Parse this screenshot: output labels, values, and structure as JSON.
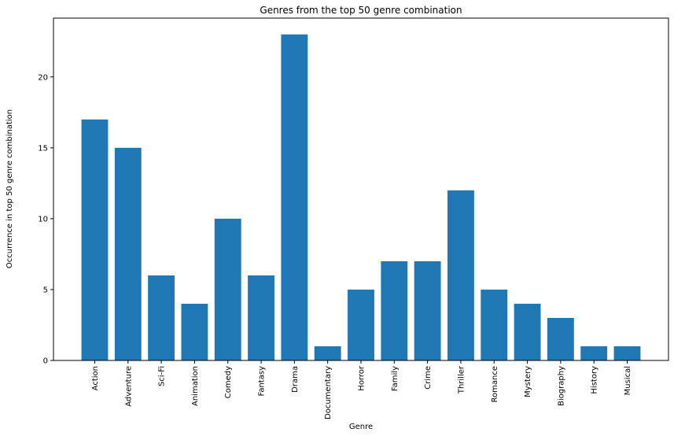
{
  "chart_data": {
    "type": "bar",
    "title": "Genres from the top 50 genre combination",
    "xlabel": "Genre",
    "ylabel": "Occurrence in top 50 genre combination",
    "categories": [
      "Action",
      "Adventure",
      "Sci-Fi",
      "Animation",
      "Comedy",
      "Fantasy",
      "Drama",
      "Documentary",
      "Horror",
      "Family",
      "Crime",
      "Thriller",
      "Romance",
      "Mystery",
      "Biography",
      "History",
      "Musical"
    ],
    "values": [
      17,
      15,
      6,
      4,
      10,
      6,
      23,
      1,
      5,
      7,
      7,
      12,
      5,
      4,
      3,
      1,
      1
    ],
    "ylim": [
      0,
      24.15
    ],
    "yticks": [
      0,
      5,
      10,
      15,
      20
    ],
    "bar_color": "#1f77b4",
    "grid": false,
    "legend": "none"
  }
}
